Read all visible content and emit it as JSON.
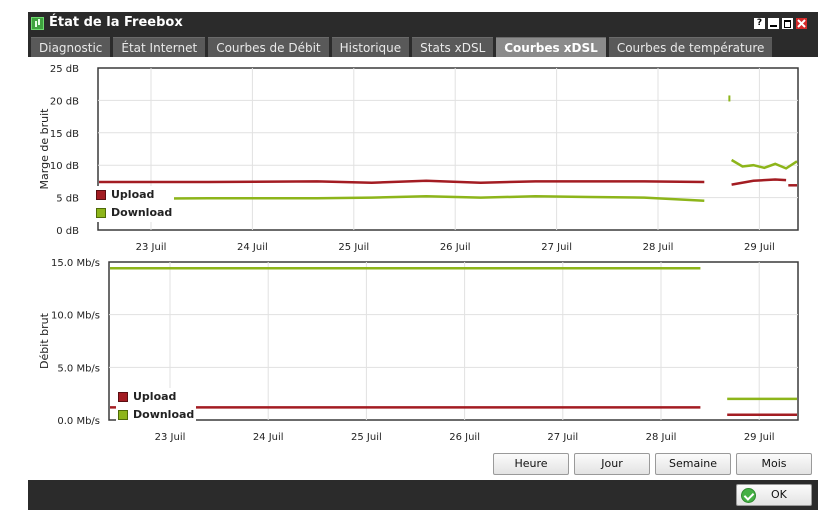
{
  "window": {
    "title": "État de la Freebox"
  },
  "title_buttons": {
    "help": "?"
  },
  "tabs": [
    {
      "label": "Diagnostic",
      "active": false
    },
    {
      "label": "État Internet",
      "active": false
    },
    {
      "label": "Courbes de Débit",
      "active": false
    },
    {
      "label": "Historique",
      "active": false
    },
    {
      "label": "Stats xDSL",
      "active": false
    },
    {
      "label": "Courbes xDSL",
      "active": true
    },
    {
      "label": "Courbes de température",
      "active": false
    }
  ],
  "colors": {
    "upload": "#a31c22",
    "download": "#8db51a",
    "close": "#d42a2a"
  },
  "chart_data": [
    {
      "type": "line",
      "ylabel": "Marge de bruit",
      "ylim": [
        0,
        25
      ],
      "yticks": [
        "0 dB",
        "5 dB",
        "10 dB",
        "15 dB",
        "20 dB",
        "25 dB"
      ],
      "xticks": [
        "23 Juil",
        "24 Juil",
        "25 Juil",
        "26 Juil",
        "27 Juil",
        "28 Juil",
        "29 Juil"
      ],
      "xlim": [
        0,
        6.4
      ],
      "legend": [
        "Upload",
        "Download"
      ],
      "series": [
        {
          "name": "Upload",
          "segments": [
            [
              [
                0,
                7.4
              ],
              [
                1,
                7.4
              ],
              [
                2,
                7.5
              ],
              [
                2.5,
                7.3
              ],
              [
                3,
                7.6
              ],
              [
                3.5,
                7.3
              ],
              [
                4,
                7.5
              ],
              [
                4.5,
                7.5
              ],
              [
                5,
                7.5
              ],
              [
                5.55,
                7.4
              ]
            ],
            [
              [
                5.8,
                7.0
              ],
              [
                6.0,
                7.6
              ],
              [
                6.2,
                7.8
              ],
              [
                6.3,
                7.7
              ]
            ],
            [
              [
                6.32,
                6.9
              ],
              [
                6.4,
                6.9
              ]
            ]
          ]
        },
        {
          "name": "Download",
          "segments": [
            [
              [
                0,
                4.8
              ],
              [
                1,
                4.9
              ],
              [
                2,
                4.9
              ],
              [
                2.5,
                5.0
              ],
              [
                3,
                5.2
              ],
              [
                3.5,
                5.0
              ],
              [
                4,
                5.2
              ],
              [
                4.5,
                5.1
              ],
              [
                5,
                5.0
              ],
              [
                5.55,
                4.5
              ]
            ],
            [
              [
                5.8,
                10.8
              ],
              [
                5.9,
                9.8
              ],
              [
                6.0,
                10.0
              ],
              [
                6.1,
                9.6
              ],
              [
                6.2,
                10.2
              ],
              [
                6.3,
                9.5
              ],
              [
                6.4,
                10.6
              ]
            ]
          ]
        }
      ],
      "points": [
        {
          "series": "Download",
          "x": 5.78,
          "y": 20.3
        }
      ]
    },
    {
      "type": "line",
      "ylabel": "Débit brut",
      "ylim": [
        0,
        15
      ],
      "yticks": [
        "0.0 Mb/s",
        "5.0 Mb/s",
        "10.0 Mb/s",
        "15.0 Mb/s"
      ],
      "xticks": [
        "23 Juil",
        "24 Juil",
        "25 Juil",
        "26 Juil",
        "27 Juil",
        "28 Juil",
        "29 Juil"
      ],
      "xlim": [
        0,
        6.4
      ],
      "legend": [
        "Upload",
        "Download"
      ],
      "series": [
        {
          "name": "Upload",
          "segments": [
            [
              [
                0,
                1.2
              ],
              [
                5.5,
                1.2
              ]
            ],
            [
              [
                5.75,
                0.5
              ],
              [
                6.4,
                0.5
              ]
            ]
          ]
        },
        {
          "name": "Download",
          "segments": [
            [
              [
                0,
                14.4
              ],
              [
                5.5,
                14.4
              ]
            ],
            [
              [
                5.75,
                2.0
              ],
              [
                6.4,
                2.0
              ]
            ]
          ]
        }
      ]
    }
  ],
  "period_buttons": {
    "heure": "Heure",
    "jour": "Jour",
    "semaine": "Semaine",
    "mois": "Mois"
  },
  "footer": {
    "ok_label": "OK"
  }
}
